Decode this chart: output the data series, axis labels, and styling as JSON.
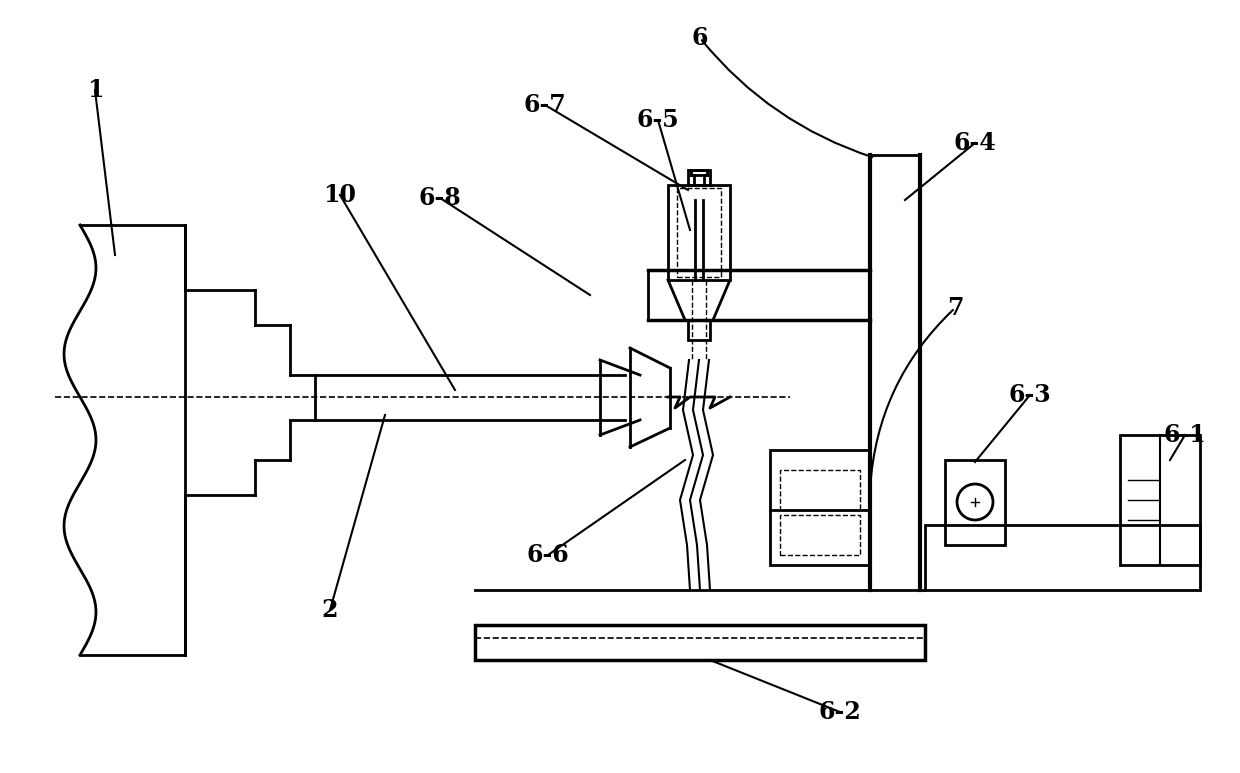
{
  "bg_color": "#ffffff",
  "line_color": "#000000",
  "line_width": 2.0
}
